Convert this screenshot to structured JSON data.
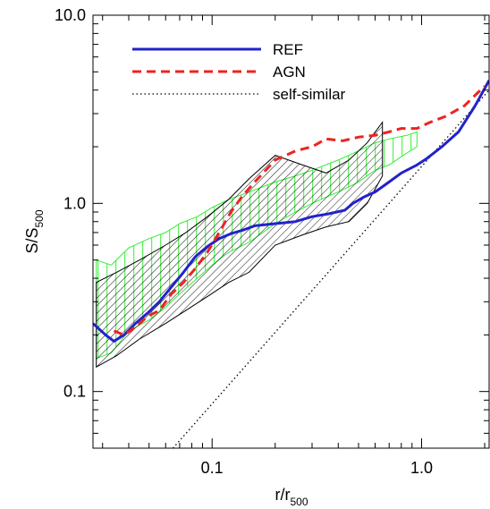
{
  "chart_data": {
    "type": "line",
    "xscale": "log",
    "yscale": "log",
    "xlim": [
      0.027,
      2.1
    ],
    "ylim": [
      0.05,
      10.0
    ],
    "xlabel": {
      "base": "r/r",
      "sub": "500"
    },
    "ylabel": {
      "base": "S/S",
      "sub": "500"
    },
    "x_ticks": [
      0.1,
      1.0
    ],
    "x_tick_labels": [
      "0.1",
      "1.0"
    ],
    "y_ticks": [
      0.1,
      1.0,
      10.0
    ],
    "y_tick_labels": [
      "0.1",
      "1.0",
      "10.0"
    ],
    "grid": false,
    "legend_position": "top-left",
    "colors": {
      "ref": "#2222cc",
      "agn": "#ee2222",
      "selfsim": "#000000",
      "green_band": "#33ee33",
      "black_band": "#000000"
    },
    "series": [
      {
        "name": "REF",
        "style": "solid",
        "x": [
          0.027,
          0.031,
          0.034,
          0.038,
          0.043,
          0.049,
          0.056,
          0.064,
          0.073,
          0.083,
          0.095,
          0.108,
          0.123,
          0.14,
          0.16,
          0.2,
          0.25,
          0.3,
          0.36,
          0.43,
          0.47,
          0.53,
          0.6,
          0.7,
          0.8,
          0.95,
          1.05,
          1.25,
          1.5,
          1.8,
          2.1
        ],
        "y": [
          0.23,
          0.2,
          0.185,
          0.2,
          0.23,
          0.26,
          0.3,
          0.36,
          0.43,
          0.52,
          0.59,
          0.65,
          0.69,
          0.72,
          0.76,
          0.78,
          0.8,
          0.85,
          0.88,
          0.92,
          1.0,
          1.08,
          1.15,
          1.3,
          1.45,
          1.6,
          1.72,
          2.0,
          2.4,
          3.3,
          4.5
        ]
      },
      {
        "name": "AGN",
        "style": "dashed",
        "x": [
          0.034,
          0.038,
          0.043,
          0.049,
          0.056,
          0.064,
          0.073,
          0.083,
          0.095,
          0.108,
          0.123,
          0.14,
          0.16,
          0.2,
          0.25,
          0.3,
          0.35,
          0.42,
          0.5,
          0.6,
          0.7,
          0.8,
          0.95,
          1.1,
          1.3,
          1.6,
          2.0
        ],
        "y": [
          0.21,
          0.2,
          0.22,
          0.25,
          0.27,
          0.33,
          0.38,
          0.45,
          0.55,
          0.7,
          0.9,
          1.1,
          1.3,
          1.7,
          1.9,
          2.0,
          2.2,
          2.15,
          2.25,
          2.3,
          2.4,
          2.5,
          2.5,
          2.7,
          2.9,
          3.3,
          4.2
        ]
      },
      {
        "name": "self-similar",
        "style": "dotted",
        "x": [
          0.065,
          2.1
        ],
        "y": [
          0.05,
          4.0
        ]
      }
    ],
    "bands": [
      {
        "style": "green-vertical-hatch",
        "x": [
          0.028,
          0.033,
          0.04,
          0.05,
          0.06,
          0.07,
          0.085,
          0.1,
          0.12,
          0.15,
          0.2,
          0.25,
          0.3,
          0.4,
          0.5,
          0.6,
          0.7,
          0.85,
          0.95
        ],
        "upper": [
          0.5,
          0.47,
          0.58,
          0.65,
          0.7,
          0.78,
          0.85,
          0.95,
          1.05,
          1.15,
          1.3,
          1.4,
          1.5,
          1.7,
          1.9,
          2.1,
          2.2,
          2.3,
          2.4
        ],
        "lower": [
          0.15,
          0.16,
          0.21,
          0.24,
          0.28,
          0.33,
          0.4,
          0.47,
          0.55,
          0.62,
          0.78,
          0.9,
          1.0,
          1.15,
          1.3,
          1.5,
          1.6,
          1.85,
          2.0
        ]
      },
      {
        "style": "black-diagonal-hatch",
        "x": [
          0.028,
          0.035,
          0.045,
          0.06,
          0.075,
          0.095,
          0.12,
          0.15,
          0.2,
          0.27,
          0.35,
          0.45,
          0.55,
          0.65
        ],
        "upper": [
          0.38,
          0.43,
          0.5,
          0.6,
          0.7,
          0.85,
          1.05,
          1.35,
          1.8,
          1.6,
          1.45,
          1.7,
          2.1,
          2.7
        ],
        "lower": [
          0.135,
          0.155,
          0.19,
          0.23,
          0.27,
          0.32,
          0.38,
          0.43,
          0.6,
          0.68,
          0.75,
          0.8,
          1.0,
          1.4
        ]
      }
    ]
  }
}
